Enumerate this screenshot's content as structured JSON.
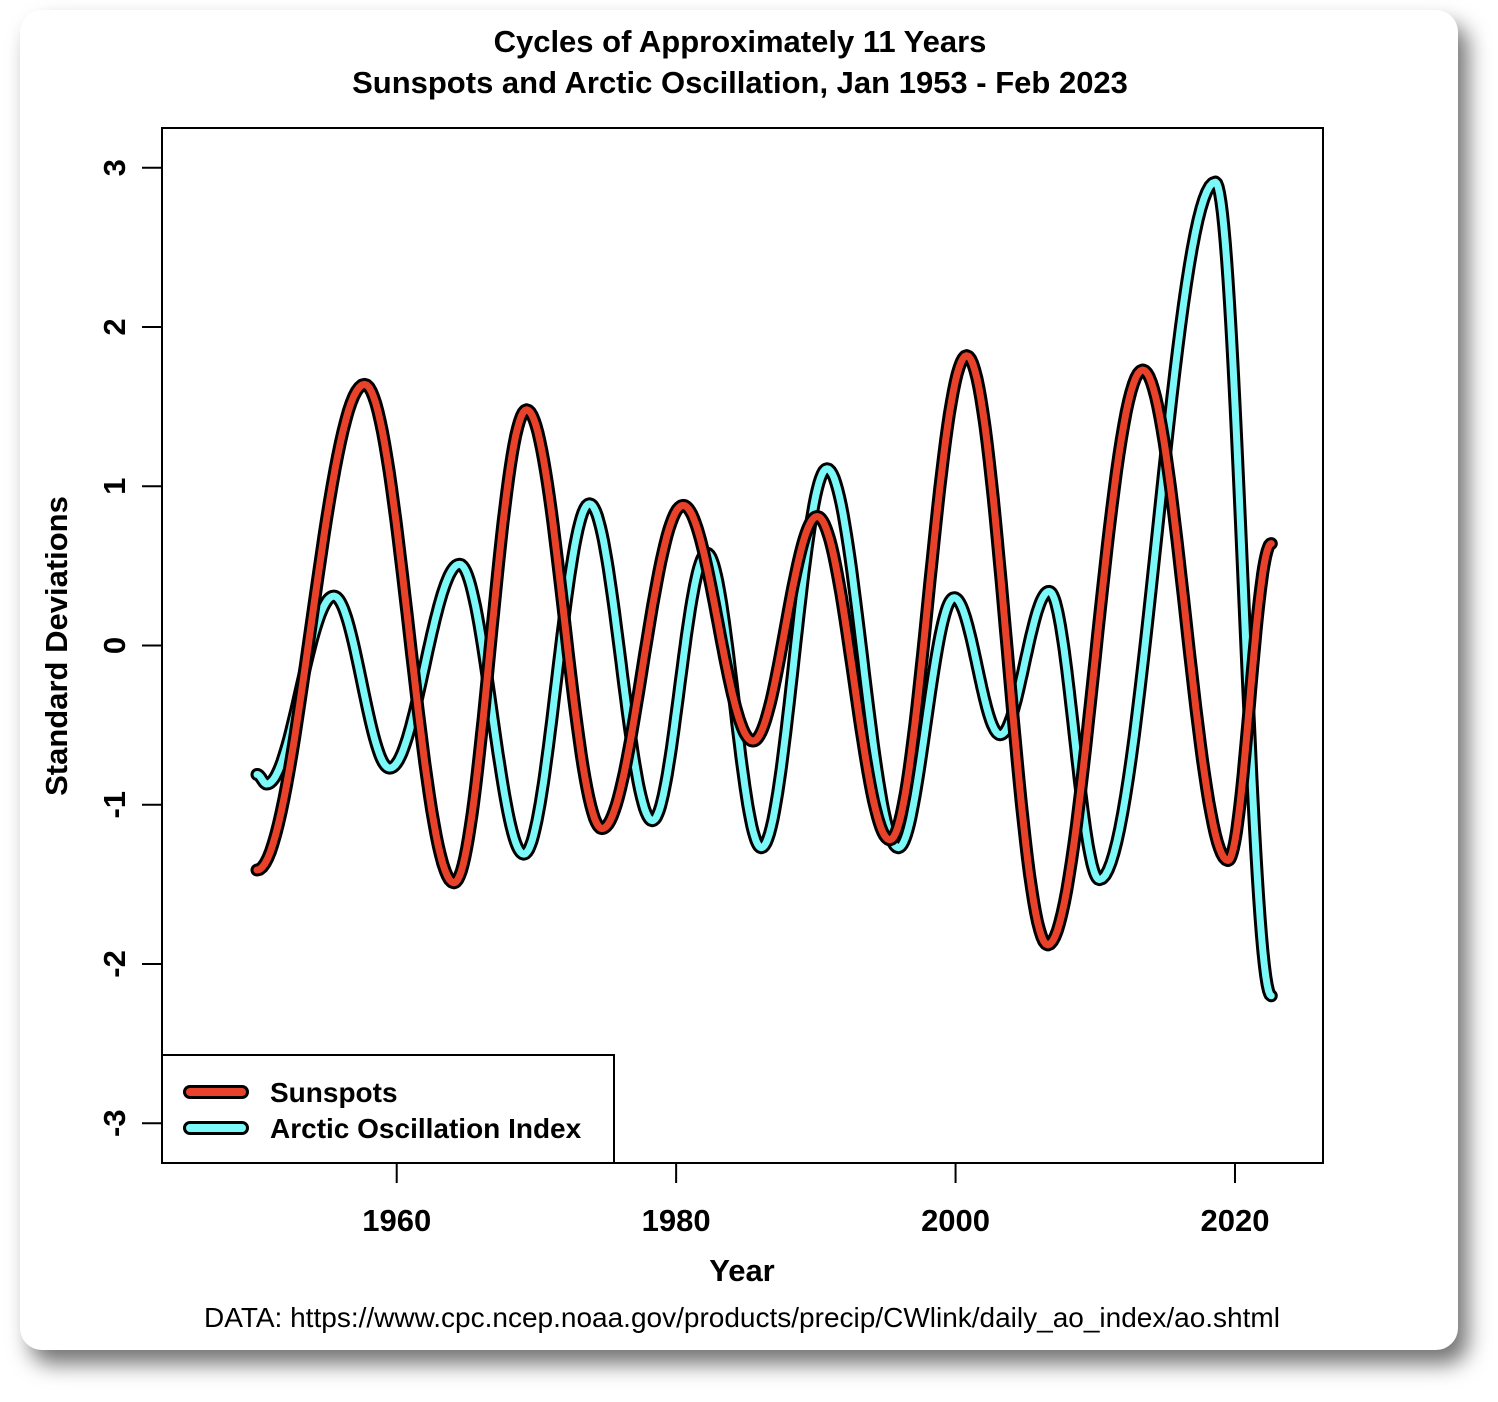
{
  "chart_data": {
    "type": "line",
    "title": "Cycles of Approximately 11 Years",
    "subtitle": "Sunspots and Arctic Oscillation, Jan 1953 - Feb 2023",
    "xlabel": "Year",
    "ylabel": "Standard Deviations",
    "xlim": [
      1943.2,
      2026.3
    ],
    "ylim": [
      -3.25,
      3.25
    ],
    "xticks": [
      1960,
      1980,
      2000,
      2020
    ],
    "yticks": [
      3,
      2,
      1,
      0,
      -1,
      -2,
      -3
    ],
    "grid": false,
    "legend_position": "bottom-left",
    "caption": "DATA: https://www.cpc.ncep.noaa.gov/products/precip/CWlink/daily_ao_index/ao.shtml",
    "series": [
      {
        "name": "Sunspots",
        "color": "#E8432A",
        "points": [
          [
            1950.0,
            -1.41
          ],
          [
            1957.7,
            1.64
          ],
          [
            1964.1,
            -1.49
          ],
          [
            1969.3,
            1.48
          ],
          [
            1974.7,
            -1.15
          ],
          [
            1980.5,
            0.88
          ],
          [
            1985.5,
            -0.6
          ],
          [
            1990.1,
            0.81
          ],
          [
            1995.3,
            -1.22
          ],
          [
            2000.8,
            1.82
          ],
          [
            2006.6,
            -1.88
          ],
          [
            2013.4,
            1.73
          ],
          [
            2019.5,
            -1.35
          ],
          [
            2022.6,
            0.64
          ]
        ]
      },
      {
        "name": "Arctic Oscillation Index",
        "color": "#7CF8F8",
        "points": [
          [
            1950.0,
            -0.81
          ],
          [
            1950.7,
            -0.87
          ],
          [
            1955.5,
            0.31
          ],
          [
            1959.5,
            -0.77
          ],
          [
            1964.5,
            0.51
          ],
          [
            1969.1,
            -1.31
          ],
          [
            1973.8,
            0.89
          ],
          [
            1978.3,
            -1.1
          ],
          [
            1982.2,
            0.58
          ],
          [
            1986.1,
            -1.27
          ],
          [
            1990.8,
            1.11
          ],
          [
            1995.9,
            -1.27
          ],
          [
            1999.9,
            0.3
          ],
          [
            2003.2,
            -0.56
          ],
          [
            2006.7,
            0.34
          ],
          [
            2010.3,
            -1.47
          ],
          [
            2018.6,
            2.91
          ],
          [
            2022.6,
            -2.2
          ]
        ]
      }
    ]
  }
}
